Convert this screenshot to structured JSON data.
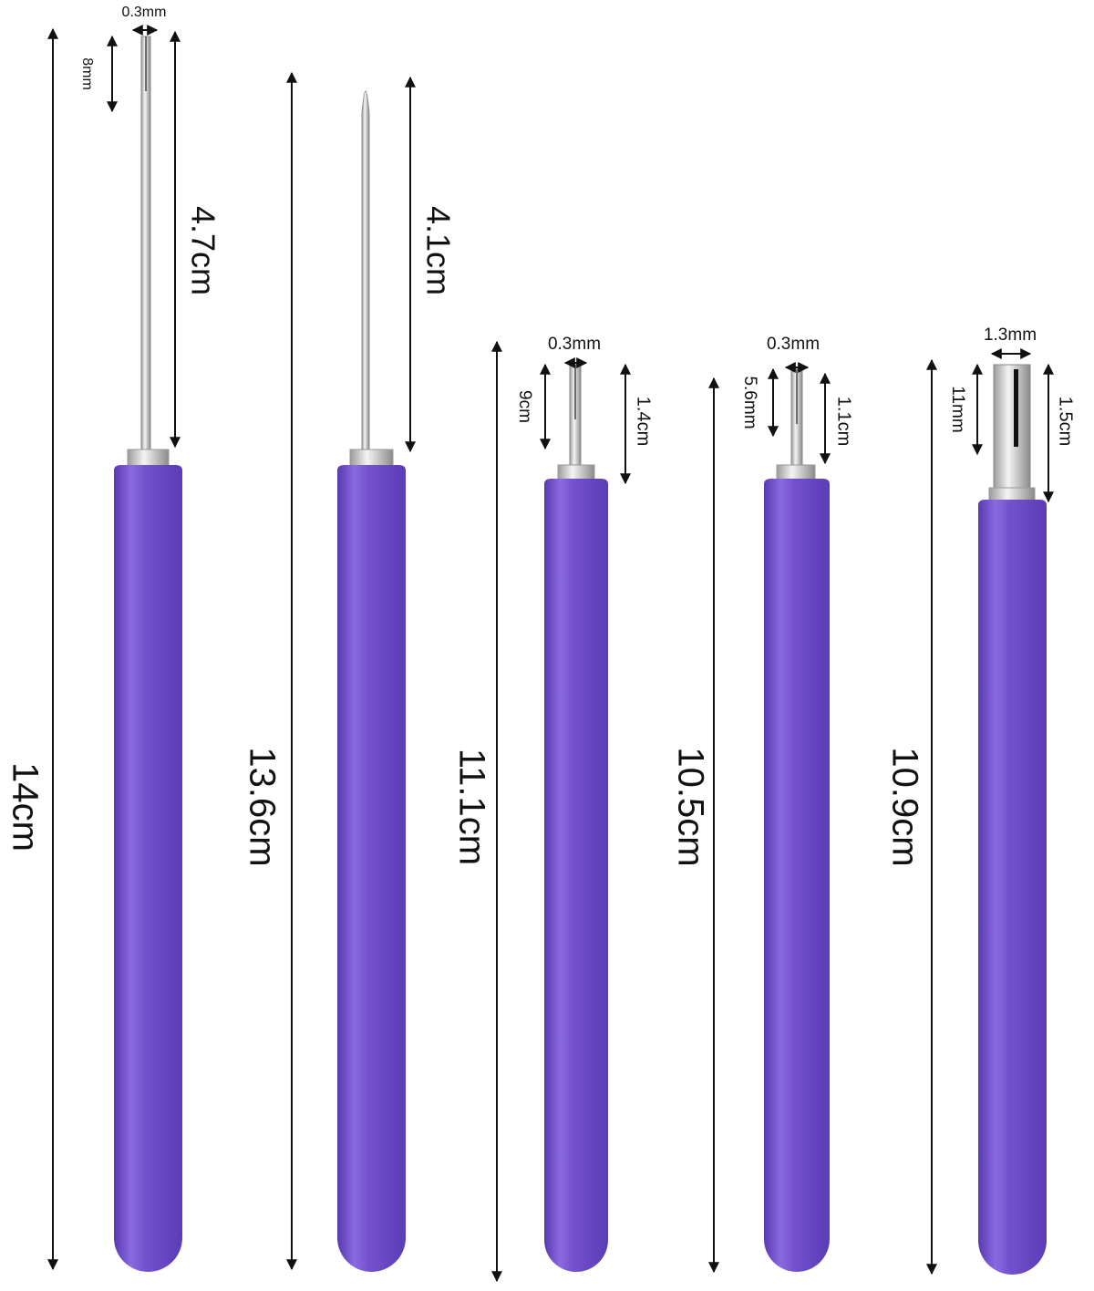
{
  "tools": [
    {
      "tip_width": "0.3mm",
      "tip_length": "8mm",
      "needle_length": "4.7cm",
      "length": "14cm"
    },
    {
      "needle_length": "4.1cm",
      "length": "13.6cm"
    },
    {
      "tip_width": "0.3mm",
      "tip_length": "9cm",
      "needle_length": "1.4cm",
      "length": "11.1cm"
    },
    {
      "tip_width": "0.3mm",
      "tip_length": "5.6mm",
      "needle_length": "1.1cm",
      "length": "10.5cm"
    },
    {
      "tip_width": "1.3mm",
      "tip_length": "11mm",
      "needle_length": "1.5cm",
      "length": "10.9cm"
    }
  ]
}
